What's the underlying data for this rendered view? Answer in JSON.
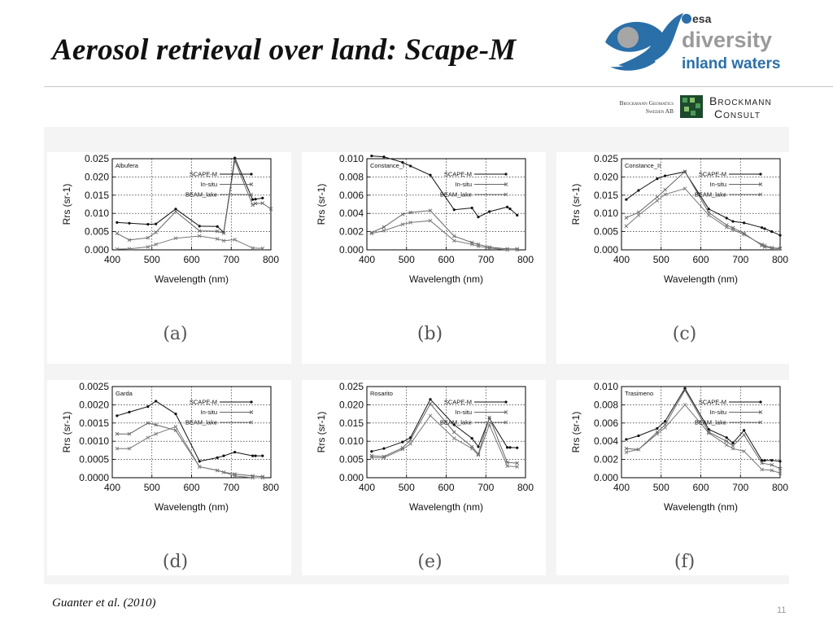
{
  "slide": {
    "title": "Aerosol retrieval over land: Scape-M",
    "citation": "Guanter et al. (2010)",
    "page_number": "11"
  },
  "logos": {
    "esa": "esa",
    "diversity_line1": "diversity",
    "diversity_line2": "inland waters",
    "brockmann_geomatics_line1": "Brockmann Geomatics",
    "brockmann_geomatics_line2": "Sweden AB",
    "brockmann_consult_line1": "Brockmann",
    "brockmann_consult_line2": "Consult",
    "colors": {
      "blue": "#2a6fa8",
      "gray": "#9a9a9a",
      "dark_green": "#1d4a2c"
    }
  },
  "legend_labels": [
    "SCAPE-M",
    "In-situ",
    "BEAM_lake"
  ],
  "chart_data": [
    {
      "type": "line",
      "panel_label": "(a)",
      "site": "Albufera",
      "xlabel": "Wavelength (nm)",
      "ylabel": "Rrs (sr-1)",
      "xlim": [
        400,
        800
      ],
      "ylim": [
        0,
        0.025
      ],
      "xticks": [
        "400",
        "500",
        "600",
        "700",
        "800"
      ],
      "yticks": [
        "0.000",
        "0.005",
        "0.010",
        "0.015",
        "0.020",
        "0.025"
      ],
      "yticks_values": [
        0,
        0.005,
        0.01,
        0.015,
        0.02,
        0.025
      ],
      "series": [
        {
          "name": "SCAPE-M",
          "x": [
            412,
            443,
            490,
            510,
            560,
            620,
            665,
            681,
            709,
            754,
            761,
            779
          ],
          "y": [
            0.0075,
            0.0073,
            0.007,
            0.0071,
            0.0112,
            0.0065,
            0.0064,
            0.0048,
            0.0252,
            0.0138,
            0.0139,
            0.0142
          ]
        },
        {
          "name": "In-situ",
          "x": [
            412,
            443,
            490,
            510,
            560,
            620,
            665,
            681,
            709,
            754,
            761,
            779,
            800
          ],
          "y": [
            0.0045,
            0.0027,
            0.0033,
            0.0048,
            0.0105,
            0.0052,
            0.0051,
            0.0046,
            0.0245,
            0.0123,
            0.0127,
            0.0128,
            0.0112
          ]
        },
        {
          "name": "BEAM_lake",
          "x": [
            412,
            443,
            490,
            510,
            560,
            620,
            665,
            681,
            709,
            754,
            779
          ],
          "y": [
            0.0002,
            0.0003,
            0.0008,
            0.0015,
            0.0032,
            0.0038,
            0.003,
            0.0025,
            0.0028,
            0.0005,
            0.0004
          ]
        }
      ]
    },
    {
      "type": "line",
      "panel_label": "(b)",
      "site": "Constance_I",
      "xlabel": "Wavelength (nm)",
      "ylabel": "Rrs (sr-1)",
      "xlim": [
        400,
        800
      ],
      "ylim": [
        0,
        0.01
      ],
      "xticks": [
        "400",
        "500",
        "600",
        "700",
        "800"
      ],
      "yticks": [
        "0.000",
        "0.002",
        "0.004",
        "0.006",
        "0.008",
        "0.010"
      ],
      "yticks_values": [
        0,
        0.002,
        0.004,
        0.006,
        0.008,
        0.01
      ],
      "series": [
        {
          "name": "SCAPE-M",
          "x": [
            412,
            443,
            490,
            510,
            560,
            620,
            665,
            681,
            709,
            754,
            761,
            779
          ],
          "y": [
            0.0103,
            0.0102,
            0.0096,
            0.0092,
            0.0082,
            0.0044,
            0.0046,
            0.0036,
            0.0042,
            0.0047,
            0.0045,
            0.0038
          ]
        },
        {
          "name": "In-situ",
          "x": [
            412,
            443,
            490,
            510,
            560,
            620,
            665,
            681,
            709,
            754,
            779
          ],
          "y": [
            0.0019,
            0.0025,
            0.0039,
            0.0041,
            0.0043,
            0.0015,
            0.0008,
            0.0006,
            0.0003,
            0.0001,
            0.0001
          ]
        },
        {
          "name": "BEAM_lake",
          "x": [
            412,
            443,
            490,
            510,
            560,
            620,
            665,
            681,
            709,
            754,
            779
          ],
          "y": [
            0.0018,
            0.0021,
            0.0028,
            0.003,
            0.0032,
            0.001,
            0.0006,
            0.0004,
            0.0002,
            0.0,
            0.0
          ]
        }
      ]
    },
    {
      "type": "line",
      "panel_label": "(c)",
      "site": "Constance_II",
      "xlabel": "Wavelength (nm)",
      "ylabel": "Rrs (sr-1)",
      "xlim": [
        400,
        800
      ],
      "ylim": [
        0,
        0.025
      ],
      "xticks": [
        "400",
        "500",
        "600",
        "700",
        "800"
      ],
      "yticks": [
        "0.000",
        "0.005",
        "0.010",
        "0.015",
        "0.020",
        "0.025"
      ],
      "yticks_values": [
        0,
        0.005,
        0.01,
        0.015,
        0.02,
        0.025
      ],
      "series": [
        {
          "name": "SCAPE-M",
          "x": [
            412,
            443,
            490,
            510,
            560,
            620,
            665,
            681,
            709,
            754,
            761,
            779,
            800
          ],
          "y": [
            0.0138,
            0.0163,
            0.0195,
            0.0203,
            0.0214,
            0.0112,
            0.0087,
            0.0078,
            0.0074,
            0.0061,
            0.0058,
            0.005,
            0.004
          ]
        },
        {
          "name": "In-situ",
          "x": [
            412,
            443,
            490,
            510,
            560,
            620,
            665,
            681,
            709,
            754,
            761,
            779,
            800
          ],
          "y": [
            0.0088,
            0.0103,
            0.0145,
            0.0165,
            0.0215,
            0.0102,
            0.0068,
            0.006,
            0.0045,
            0.0012,
            0.0008,
            0.0005,
            0.0003
          ]
        },
        {
          "name": "BEAM_lake",
          "x": [
            412,
            443,
            490,
            510,
            560,
            620,
            665,
            681,
            709,
            754,
            761,
            779,
            800
          ],
          "y": [
            0.0065,
            0.0095,
            0.0135,
            0.0152,
            0.0168,
            0.0095,
            0.0062,
            0.0055,
            0.0042,
            0.0015,
            0.0012,
            0.0006,
            0.0004
          ]
        }
      ]
    },
    {
      "type": "line",
      "panel_label": "(d)",
      "site": "Garda",
      "xlabel": "Wavelength (nm)",
      "ylabel": "Rrs (sr-1)",
      "xlim": [
        400,
        800
      ],
      "ylim": [
        0,
        0.0025
      ],
      "xticks": [
        "400",
        "500",
        "600",
        "700",
        "800"
      ],
      "yticks": [
        "0.0000",
        "0.0005",
        "0.0010",
        "0.0015",
        "0.0020",
        "0.0025"
      ],
      "yticks_values": [
        0,
        0.0005,
        0.001,
        0.0015,
        0.002,
        0.0025
      ],
      "series": [
        {
          "name": "SCAPE-M",
          "x": [
            412,
            443,
            490,
            510,
            560,
            620,
            665,
            681,
            709,
            754,
            761,
            779
          ],
          "y": [
            0.0017,
            0.0018,
            0.00195,
            0.0021,
            0.00175,
            0.00045,
            0.00055,
            0.0006,
            0.0007,
            0.0006,
            0.0006,
            0.0006
          ]
        },
        {
          "name": "In-situ",
          "x": [
            412,
            443,
            490,
            510,
            560,
            620,
            665,
            681,
            709,
            754,
            779
          ],
          "y": [
            0.0012,
            0.0012,
            0.0015,
            0.00145,
            0.0013,
            0.0003,
            0.0002,
            0.00015,
            0.0001,
            5e-05,
            3e-05
          ]
        },
        {
          "name": "BEAM_lake",
          "x": [
            412,
            443,
            490,
            510,
            560,
            620,
            665,
            681,
            709,
            754,
            779
          ],
          "y": [
            0.0008,
            0.0008,
            0.0011,
            0.0012,
            0.0014,
            0.0003,
            0.0002,
            0.00015,
            5e-05,
            0.0,
            0.0
          ]
        }
      ]
    },
    {
      "type": "line",
      "panel_label": "(e)",
      "site": "Rosarito",
      "xlabel": "Wavelength (nm)",
      "ylabel": "Rrs (sr-1)",
      "xlim": [
        400,
        800
      ],
      "ylim": [
        0,
        0.025
      ],
      "xticks": [
        "400",
        "500",
        "600",
        "700",
        "800"
      ],
      "yticks": [
        "0.000",
        "0.005",
        "0.010",
        "0.015",
        "0.020",
        "0.025"
      ],
      "yticks_values": [
        0,
        0.005,
        0.01,
        0.015,
        0.02,
        0.025
      ],
      "series": [
        {
          "name": "SCAPE-M",
          "x": [
            412,
            443,
            490,
            510,
            560,
            620,
            665,
            681,
            709,
            754,
            761,
            779
          ],
          "y": [
            0.0072,
            0.008,
            0.0098,
            0.011,
            0.0215,
            0.0145,
            0.0108,
            0.0085,
            0.0163,
            0.0083,
            0.0083,
            0.0082
          ]
        },
        {
          "name": "In-situ",
          "x": [
            412,
            443,
            490,
            510,
            560,
            620,
            665,
            681,
            709,
            754,
            779
          ],
          "y": [
            0.006,
            0.0058,
            0.0082,
            0.0104,
            0.0203,
            0.0125,
            0.0085,
            0.0065,
            0.0165,
            0.0042,
            0.004
          ]
        },
        {
          "name": "BEAM_lake",
          "x": [
            412,
            443,
            490,
            510,
            560,
            620,
            665,
            681,
            709,
            754,
            779
          ],
          "y": [
            0.0055,
            0.0055,
            0.0078,
            0.0093,
            0.017,
            0.0108,
            0.008,
            0.0062,
            0.0145,
            0.0032,
            0.003
          ]
        }
      ]
    },
    {
      "type": "line",
      "panel_label": "(f)",
      "site": "Trasimeno",
      "xlabel": "Wavelength (nm)",
      "ylabel": "Rrs (sr-1)",
      "xlim": [
        400,
        800
      ],
      "ylim": [
        0,
        0.01
      ],
      "xticks": [
        "400",
        "500",
        "600",
        "700",
        "800"
      ],
      "yticks": [
        "0.000",
        "0.002",
        "0.004",
        "0.006",
        "0.008",
        "0.010"
      ],
      "yticks_values": [
        0,
        0.002,
        0.004,
        0.006,
        0.008,
        0.01
      ],
      "series": [
        {
          "name": "SCAPE-M",
          "x": [
            412,
            443,
            490,
            510,
            560,
            620,
            665,
            681,
            709,
            754,
            761,
            779,
            800
          ],
          "y": [
            0.0042,
            0.0046,
            0.0054,
            0.0062,
            0.0098,
            0.0053,
            0.0044,
            0.0038,
            0.0052,
            0.0019,
            0.0019,
            0.0019,
            0.0018
          ]
        },
        {
          "name": "In-situ",
          "x": [
            412,
            443,
            490,
            510,
            560,
            620,
            665,
            681,
            709,
            754,
            779,
            800
          ],
          "y": [
            0.0032,
            0.0031,
            0.005,
            0.0058,
            0.0096,
            0.005,
            0.004,
            0.0035,
            0.0047,
            0.0016,
            0.0014,
            0.001
          ]
        },
        {
          "name": "BEAM_lake",
          "x": [
            412,
            443,
            490,
            510,
            560,
            620,
            665,
            681,
            709,
            754,
            779,
            800
          ],
          "y": [
            0.0028,
            0.0031,
            0.0048,
            0.0055,
            0.008,
            0.0049,
            0.0036,
            0.0032,
            0.0029,
            0.0009,
            0.0008,
            0.0005
          ]
        }
      ]
    }
  ]
}
